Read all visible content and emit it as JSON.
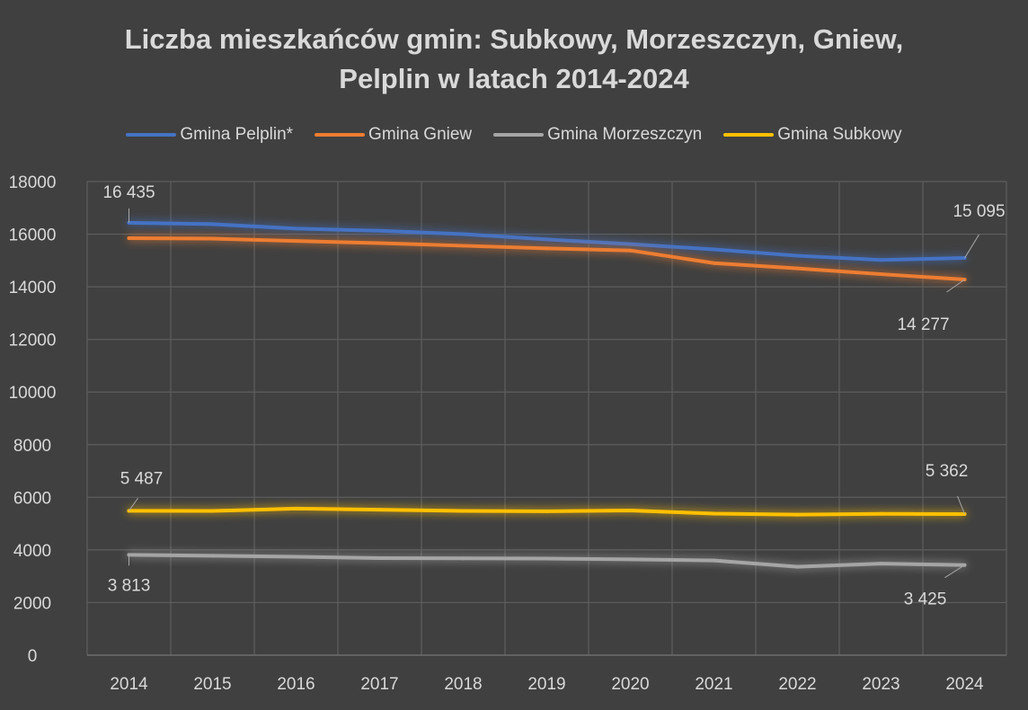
{
  "chart_data": {
    "type": "line",
    "title_lines": [
      "Liczba mieszkańców gmin: Subkowy, Morzeszczyn, Gniew,",
      "Pelplin w latach 2014-2024"
    ],
    "xlabel": "",
    "ylabel": "",
    "categories": [
      "2014",
      "2015",
      "2016",
      "2017",
      "2018",
      "2019",
      "2020",
      "2021",
      "2022",
      "2023",
      "2024"
    ],
    "ylim": [
      0,
      18000
    ],
    "ytick_step": 2000,
    "grid": true,
    "legend_position": "top",
    "series": [
      {
        "name": "Gmina Pelplin*",
        "color": "#4472c4",
        "values": [
          16435,
          16380,
          16210,
          16130,
          16000,
          15800,
          15620,
          15420,
          15180,
          15020,
          15095
        ],
        "labels": [
          {
            "index": 0,
            "text": "16 435"
          },
          {
            "index": 10,
            "text": "15 095"
          }
        ]
      },
      {
        "name": "Gmina Gniew",
        "color": "#ed7d31",
        "values": [
          15850,
          15830,
          15740,
          15660,
          15560,
          15460,
          15380,
          14900,
          14700,
          14480,
          14277
        ],
        "labels": [
          {
            "index": 10,
            "text": "14 277"
          }
        ]
      },
      {
        "name": "Gmina Morzeszczyn",
        "color": "#a5a5a5",
        "values": [
          3813,
          3780,
          3740,
          3690,
          3680,
          3670,
          3640,
          3600,
          3360,
          3480,
          3425
        ],
        "labels": [
          {
            "index": 0,
            "text": "3 813"
          },
          {
            "index": 10,
            "text": "3 425"
          }
        ]
      },
      {
        "name": "Gmina Subkowy",
        "color": "#ffc000",
        "values": [
          5487,
          5480,
          5570,
          5530,
          5480,
          5470,
          5500,
          5380,
          5340,
          5370,
          5362
        ],
        "labels": [
          {
            "index": 0,
            "text": "5 487"
          },
          {
            "index": 10,
            "text": "5 362"
          }
        ]
      }
    ]
  }
}
